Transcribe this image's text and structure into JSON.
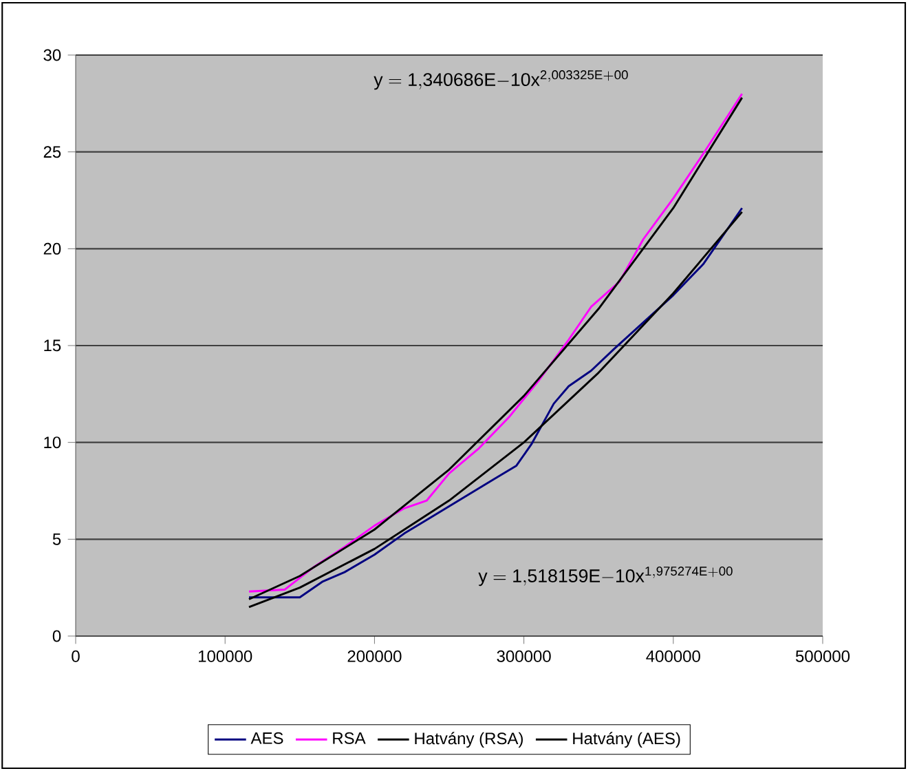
{
  "chart_data": {
    "type": "line",
    "xlim": [
      0,
      500000
    ],
    "xticks": [
      0,
      100000,
      200000,
      300000,
      400000,
      500000
    ],
    "ylim": [
      0,
      30
    ],
    "yticks": [
      0,
      5,
      10,
      15,
      20,
      25,
      30
    ],
    "grid": "y",
    "legend": "bottom",
    "marker": "none",
    "line_style": "solid",
    "annotations": [
      "\\mathrm{y = 1{,}340686E{-}10x^{2{,}003325E{+}00}}",
      "\\mathrm{y = 1{,}518159E{-}10x^{1{,}975274E{+}00}}"
    ],
    "series": [
      {
        "name": "AES",
        "color": "#000080",
        "x": [
          116000,
          150000,
          165000,
          180000,
          200000,
          220000,
          250000,
          280000,
          295000,
          305000,
          320000,
          330000,
          345000,
          360000,
          380000,
          400000,
          420000,
          446000
        ],
        "values": [
          2.0,
          2.0,
          2.8,
          3.3,
          4.2,
          5.3,
          6.7,
          8.1,
          8.8,
          9.9,
          12.0,
          12.9,
          13.7,
          14.8,
          16.2,
          17.6,
          19.2,
          22.1
        ]
      },
      {
        "name": "RSA",
        "color": "#ff00ff",
        "x": [
          116000,
          140000,
          160000,
          180000,
          200000,
          220000,
          235000,
          250000,
          270000,
          290000,
          310000,
          330000,
          345000,
          364000,
          380000,
          400000,
          420000,
          446000
        ],
        "values": [
          2.3,
          2.4,
          3.6,
          4.6,
          5.7,
          6.6,
          7.0,
          8.4,
          9.7,
          11.3,
          13.2,
          15.3,
          17.0,
          18.3,
          20.5,
          22.6,
          24.9,
          28.0
        ]
      },
      {
        "name": "Hatvány (RSA)",
        "color": "#000000",
        "x": [
          116000,
          150000,
          200000,
          250000,
          300000,
          350000,
          400000,
          446000
        ],
        "values": [
          1.9,
          3.1,
          5.5,
          8.6,
          12.4,
          16.9,
          22.1,
          27.8
        ]
      },
      {
        "name": "Hatvány (AES)",
        "color": "#000000",
        "x": [
          116000,
          150000,
          200000,
          250000,
          300000,
          350000,
          400000,
          446000
        ],
        "values": [
          1.5,
          2.5,
          4.5,
          7.0,
          10.0,
          13.6,
          17.7,
          21.9
        ]
      }
    ]
  }
}
